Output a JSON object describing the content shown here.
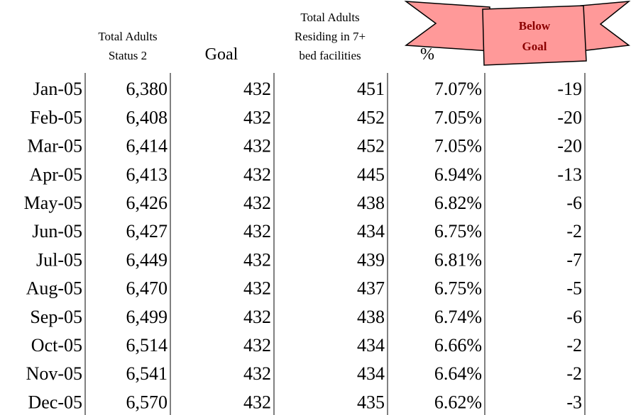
{
  "header": {
    "columns": [
      [
        "Total Adults",
        "Status 2"
      ],
      [
        "Goal"
      ],
      [
        "Total Adults",
        "Residing in 7+",
        "bed facilities"
      ],
      [
        "%"
      ]
    ],
    "banner": [
      "Below",
      "Goal"
    ]
  },
  "table": {
    "rows": [
      [
        "Jan-05",
        "6,380",
        "432",
        "451",
        "7.07%",
        "-19"
      ],
      [
        "Feb-05",
        "6,408",
        "432",
        "452",
        "7.05%",
        "-20"
      ],
      [
        "Mar-05",
        "6,414",
        "432",
        "452",
        "7.05%",
        "-20"
      ],
      [
        "Apr-05",
        "6,413",
        "432",
        "445",
        "6.94%",
        "-13"
      ],
      [
        "May-05",
        "6,426",
        "432",
        "438",
        "6.82%",
        "-6"
      ],
      [
        "Jun-05",
        "6,427",
        "432",
        "434",
        "6.75%",
        "-2"
      ],
      [
        "Jul-05",
        "6,449",
        "432",
        "439",
        "6.81%",
        "-7"
      ],
      [
        "Aug-05",
        "6,470",
        "432",
        "437",
        "6.75%",
        "-5"
      ],
      [
        "Sep-05",
        "6,499",
        "432",
        "438",
        "6.74%",
        "-6"
      ],
      [
        "Oct-05",
        "6,514",
        "432",
        "434",
        "6.66%",
        "-2"
      ],
      [
        "Nov-05",
        "6,541",
        "432",
        "434",
        "6.64%",
        "-2"
      ],
      [
        "Dec-05",
        "6,570",
        "432",
        "435",
        "6.62%",
        "-3"
      ]
    ]
  }
}
